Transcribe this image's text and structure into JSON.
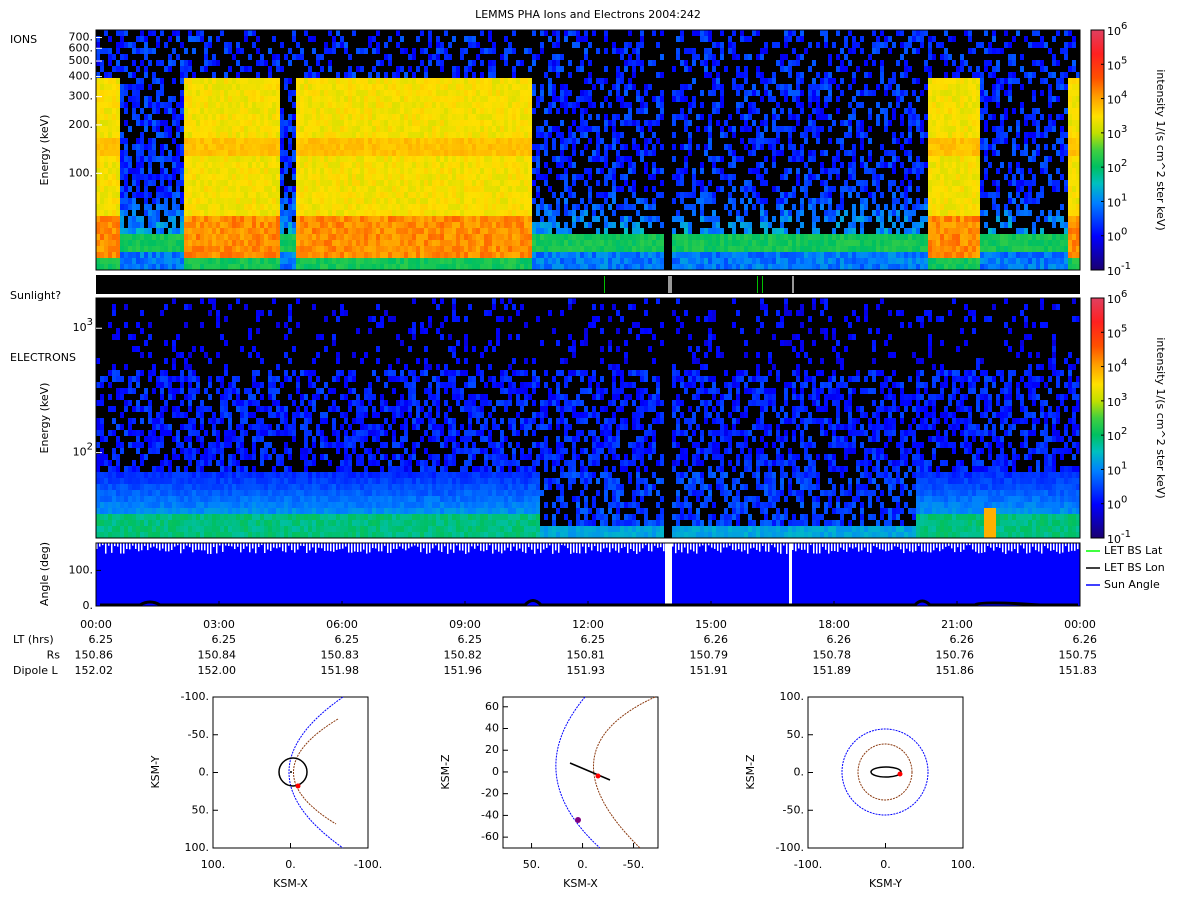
{
  "title": "LEMMS PHA Ions and Electrons  2004:242",
  "chart_data": [
    {
      "type": "spectrogram",
      "label": "IONS",
      "ylabel": "Energy (keV)",
      "log_y": true,
      "ylim": [
        25,
        780
      ],
      "yticks": [
        {
          "value": 700,
          "label": "700."
        },
        {
          "value": 600,
          "label": "600."
        },
        {
          "value": 500,
          "label": "500."
        },
        {
          "value": 400,
          "label": "400."
        },
        {
          "value": 300,
          "label": "300."
        },
        {
          "value": 200,
          "label": "200."
        },
        {
          "value": 100,
          "label": "100."
        }
      ],
      "colorbar": {
        "label": "intensity 1/(s cm^2 ster keV)",
        "log": true,
        "lim": [
          0.1,
          1000000
        ],
        "ticks": [
          {
            "value": 1000000,
            "label": "10",
            "exponent": "6"
          },
          {
            "value": 100000,
            "label": "10",
            "exponent": "5"
          },
          {
            "value": 10000,
            "label": "10",
            "exponent": "4"
          },
          {
            "value": 1000,
            "label": "10",
            "exponent": "3"
          },
          {
            "value": 100,
            "label": "10",
            "exponent": "2"
          },
          {
            "value": 10,
            "label": "10",
            "exponent": "1"
          },
          {
            "value": 1,
            "label": "10",
            "exponent": "0"
          },
          {
            "value": 0.1,
            "label": "10",
            "exponent": "-1"
          }
        ]
      }
    },
    {
      "type": "flag",
      "label": "Sunlight?"
    },
    {
      "type": "spectrogram",
      "label": "ELECTRONS",
      "ylabel": "Energy (keV)",
      "log_y": true,
      "ylim": [
        20.6,
        1750
      ],
      "yticks": [
        {
          "value": 1000,
          "label": "10",
          "exponent": "3"
        },
        {
          "value": 100,
          "label": "10",
          "exponent": "2"
        }
      ],
      "colorbar": {
        "label": "intensity 1/(s cm^2 ster keV)",
        "log": true,
        "lim": [
          0.1,
          1000000
        ],
        "ticks": [
          {
            "value": 1000000,
            "label": "10",
            "exponent": "6"
          },
          {
            "value": 100000,
            "label": "10",
            "exponent": "5"
          },
          {
            "value": 10000,
            "label": "10",
            "exponent": "4"
          },
          {
            "value": 1000,
            "label": "10",
            "exponent": "3"
          },
          {
            "value": 100,
            "label": "10",
            "exponent": "2"
          },
          {
            "value": 10,
            "label": "10",
            "exponent": "1"
          },
          {
            "value": 1,
            "label": "10",
            "exponent": "0"
          },
          {
            "value": 0.1,
            "label": "10",
            "exponent": "-1"
          }
        ]
      }
    },
    {
      "type": "angle",
      "ylabel": "Angle (deg)",
      "ylim": [
        0,
        177
      ],
      "yticks": [
        {
          "value": 100,
          "label": "100."
        },
        {
          "value": 0,
          "label": "0."
        }
      ],
      "series": [
        {
          "name": "LET BS Lat",
          "color": "#00ff00"
        },
        {
          "name": "LET BS Lon",
          "color": "#000000"
        },
        {
          "name": "Sun Angle",
          "color": "#0000ff"
        }
      ],
      "xlim": [
        0,
        24
      ],
      "xticks": [
        {
          "value": 0,
          "label": "00:00"
        },
        {
          "value": 3,
          "label": "03:00"
        },
        {
          "value": 6,
          "label": "06:00"
        },
        {
          "value": 9,
          "label": "09:00"
        },
        {
          "value": 12,
          "label": "12:00"
        },
        {
          "value": 15,
          "label": "15:00"
        },
        {
          "value": 18,
          "label": "18:00"
        },
        {
          "value": 21,
          "label": "21:00"
        },
        {
          "value": 24,
          "label": "00:00"
        }
      ],
      "ephemeris": [
        {
          "label": "LT (hrs)",
          "values": [
            "6.25",
            "6.25",
            "6.25",
            "6.25",
            "6.25",
            "6.26",
            "6.26",
            "6.26",
            "6.26"
          ]
        },
        {
          "label": "Rs",
          "values": [
            "150.86",
            "150.84",
            "150.83",
            "150.82",
            "150.81",
            "150.79",
            "150.78",
            "150.76",
            "150.75"
          ]
        },
        {
          "label": "Dipole L",
          "values": [
            "152.02",
            "152.00",
            "151.98",
            "151.96",
            "151.93",
            "151.91",
            "151.89",
            "151.86",
            "151.83"
          ]
        }
      ]
    },
    {
      "type": "orbit",
      "xlabel": "KSM-X",
      "ylabel": "KSM-Y",
      "xlim": [
        100,
        -100
      ],
      "ylim": [
        100,
        -100
      ],
      "xticks": [
        {
          "value": 100,
          "label": "100."
        },
        {
          "value": 0,
          "label": "0."
        },
        {
          "value": -100,
          "label": "-100."
        }
      ],
      "yticks": [
        {
          "value": -100,
          "label": "-100."
        },
        {
          "value": -50,
          "label": "-50."
        },
        {
          "value": 0,
          "label": "0."
        },
        {
          "value": 50,
          "label": "50."
        },
        {
          "value": 100,
          "label": "100."
        }
      ]
    },
    {
      "type": "orbit",
      "xlabel": "KSM-X",
      "ylabel": "KSM-Z",
      "xlim": [
        78,
        -74
      ],
      "ylim": [
        -70,
        69
      ],
      "xticks": [
        {
          "value": 50,
          "label": "50."
        },
        {
          "value": 0,
          "label": "0."
        },
        {
          "value": -50,
          "label": "-50."
        }
      ],
      "yticks": [
        60,
        40,
        20,
        0,
        -20,
        -40,
        -60
      ]
    },
    {
      "type": "orbit",
      "xlabel": "KSM-Y",
      "ylabel": "KSM-Z",
      "xlim": [
        -100,
        100
      ],
      "ylim": [
        -100,
        100
      ],
      "xticks": [
        {
          "value": -100,
          "label": "-100."
        },
        {
          "value": 0,
          "label": "0."
        },
        {
          "value": 100,
          "label": "100."
        }
      ],
      "yticks": [
        {
          "value": 100,
          "label": "100."
        },
        {
          "value": 50,
          "label": "50."
        },
        {
          "value": 0,
          "label": "0."
        },
        {
          "value": -50,
          "label": "-50."
        },
        {
          "value": -100,
          "label": "-100."
        }
      ]
    }
  ]
}
